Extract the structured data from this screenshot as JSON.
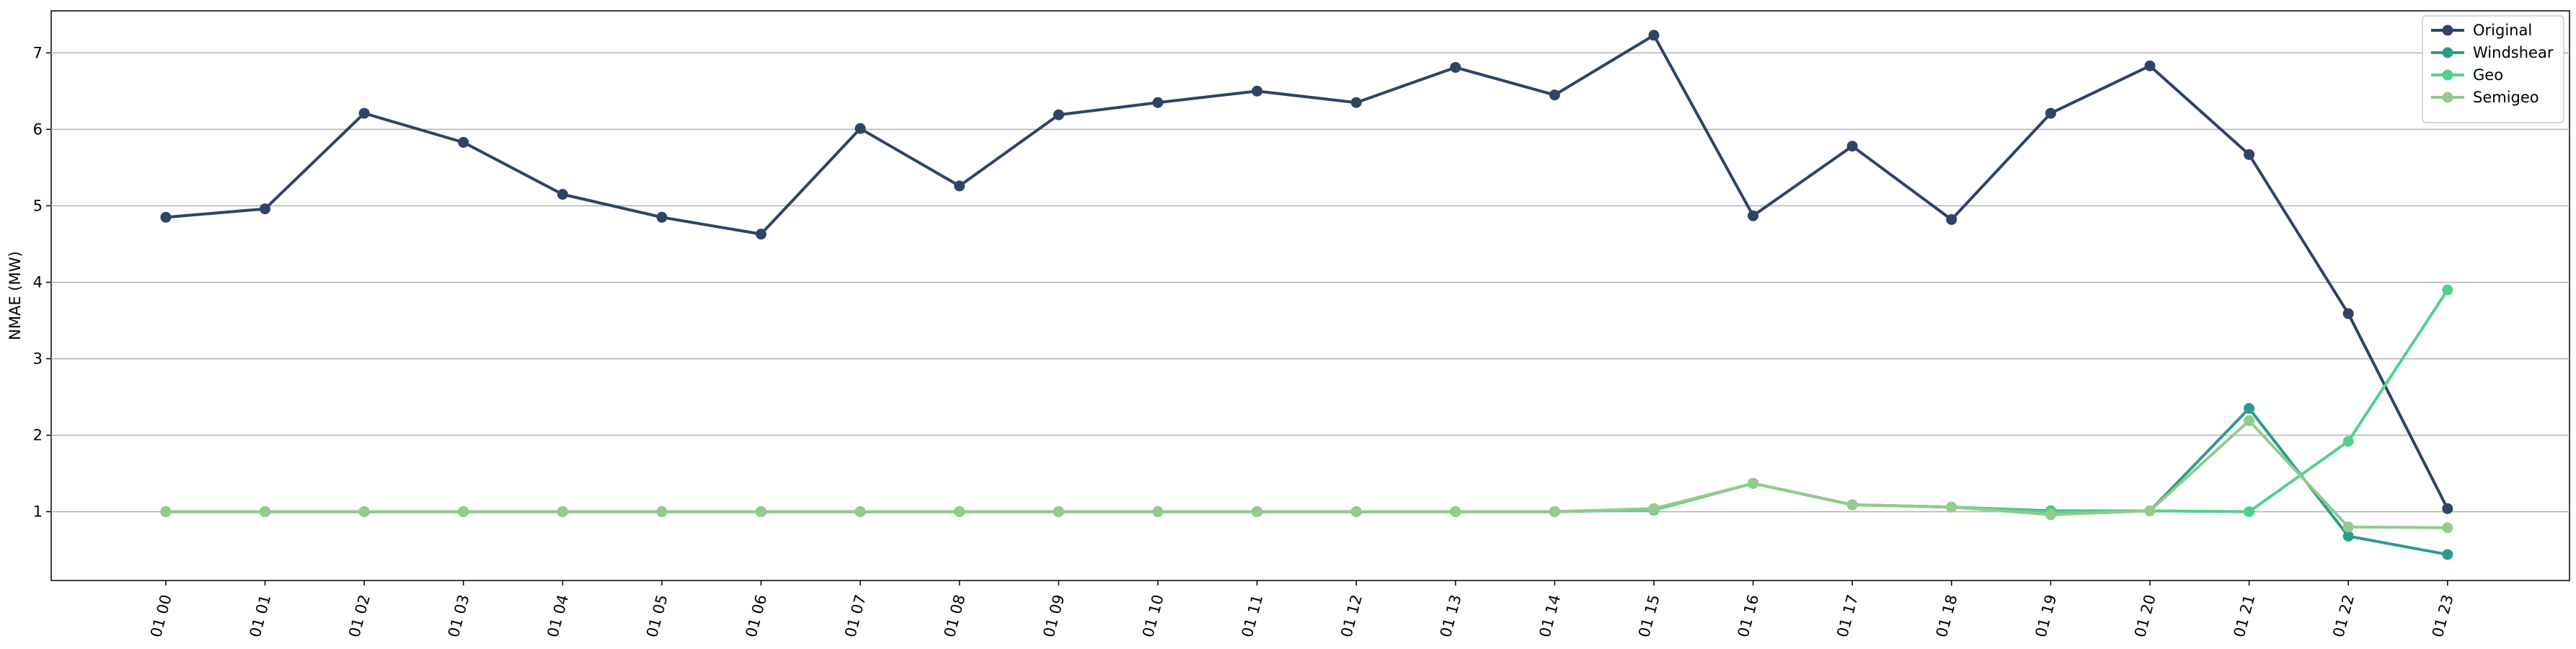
{
  "chart_data": {
    "type": "line",
    "title": "",
    "xlabel": "",
    "ylabel": "NMAE (MW)",
    "ylim": [
      0.1,
      7.55
    ],
    "yticks": [
      1,
      2,
      3,
      4,
      5,
      6,
      7
    ],
    "grid": "horizontal",
    "legend_position": "top-right",
    "categories": [
      "01 00",
      "01 01",
      "01 02",
      "01 03",
      "01 04",
      "01 05",
      "01 06",
      "01 07",
      "01 08",
      "01 09",
      "01 10",
      "01 11",
      "01 12",
      "01 13",
      "01 14",
      "01 15",
      "01 16",
      "01 17",
      "01 18",
      "01 19",
      "01 20",
      "01 21",
      "01 22",
      "01 23"
    ],
    "series": [
      {
        "name": "Original",
        "color": "#2f4366",
        "values": [
          4.85,
          4.96,
          6.21,
          5.83,
          5.15,
          4.85,
          4.63,
          6.01,
          5.26,
          6.19,
          6.35,
          6.5,
          6.35,
          6.81,
          6.45,
          7.23,
          4.87,
          5.78,
          4.82,
          6.21,
          6.83,
          5.67,
          3.59,
          1.04
        ]
      },
      {
        "name": "Windshear",
        "color": "#2e9a8f",
        "values": [
          1.0,
          1.0,
          1.0,
          1.0,
          1.0,
          1.0,
          1.0,
          1.0,
          1.0,
          1.0,
          1.0,
          1.0,
          1.0,
          1.0,
          1.0,
          1.03,
          1.37,
          1.09,
          1.06,
          1.01,
          1.01,
          2.35,
          0.68,
          0.44
        ]
      },
      {
        "name": "Geo",
        "color": "#4fd18e",
        "values": [
          1.0,
          1.0,
          1.0,
          1.0,
          1.0,
          1.0,
          1.0,
          1.0,
          1.0,
          1.0,
          1.0,
          1.0,
          1.0,
          1.0,
          1.0,
          1.02,
          1.37,
          1.09,
          1.06,
          1.0,
          1.01,
          1.0,
          1.92,
          3.9
        ]
      },
      {
        "name": "Semigeo",
        "color": "#93cb8a",
        "values": [
          1.0,
          1.0,
          1.0,
          1.0,
          1.0,
          1.0,
          1.0,
          1.0,
          1.0,
          1.0,
          1.0,
          1.0,
          1.0,
          1.0,
          1.0,
          1.04,
          1.37,
          1.09,
          1.06,
          0.96,
          1.01,
          2.19,
          0.8,
          0.79
        ]
      }
    ]
  }
}
